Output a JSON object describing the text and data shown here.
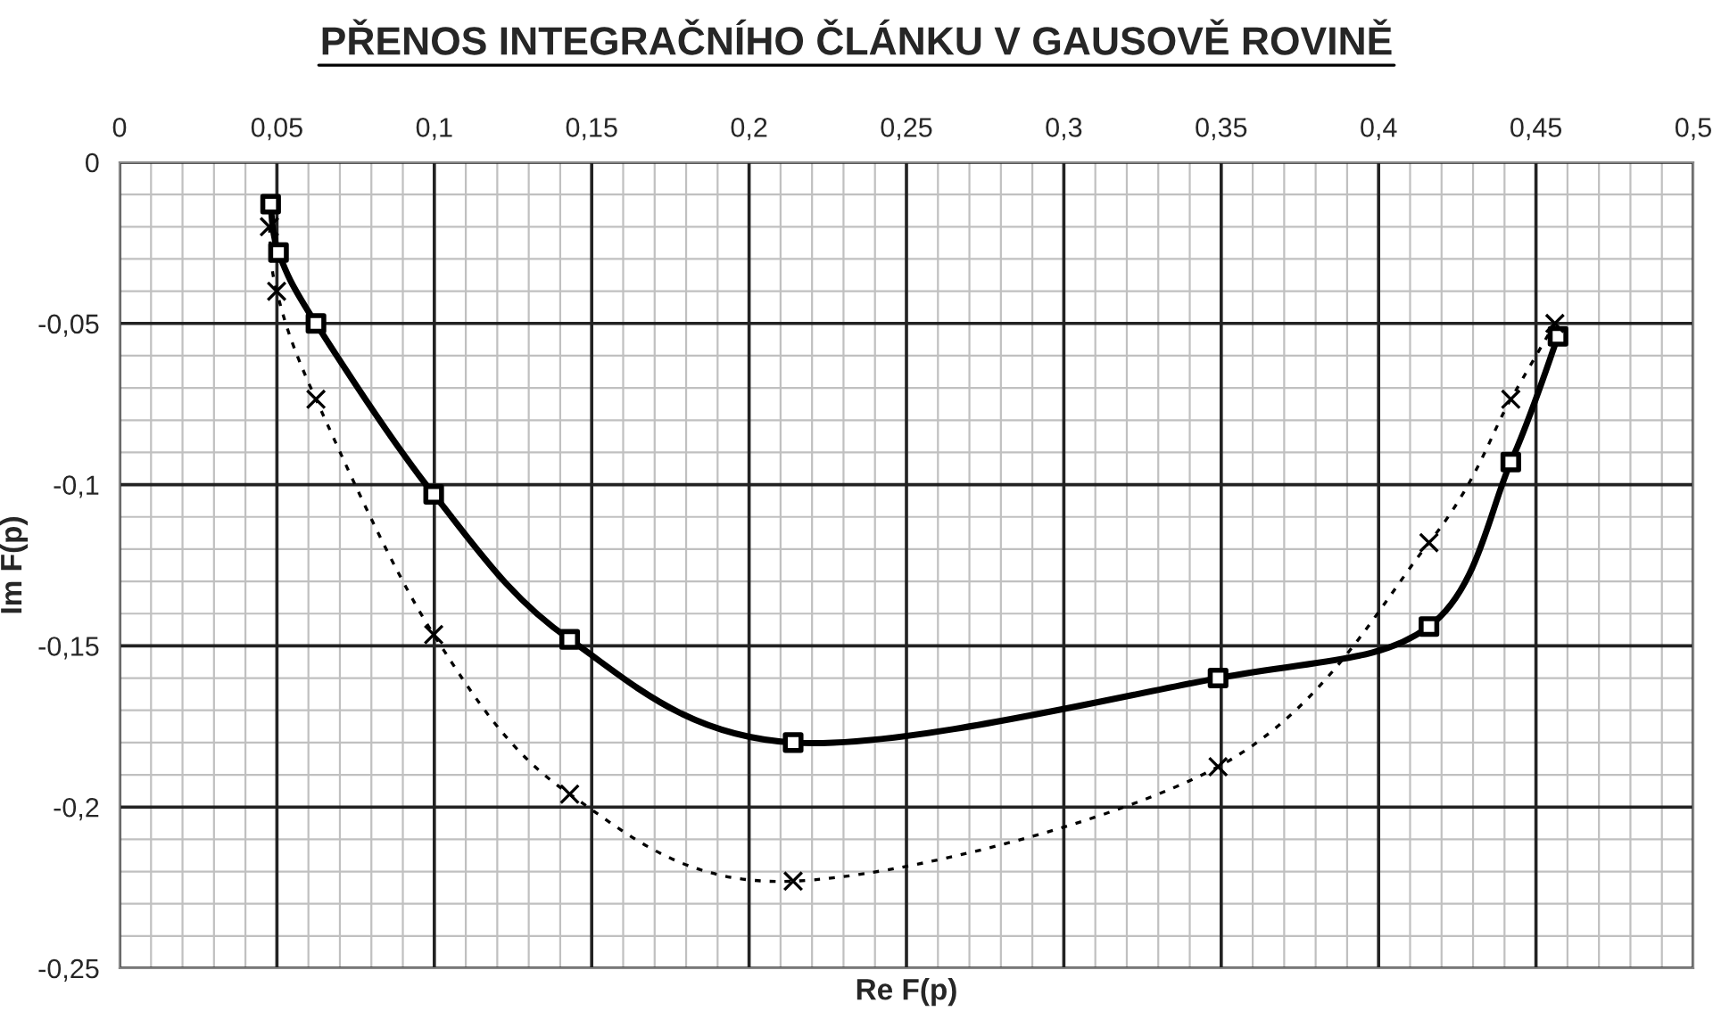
{
  "chart_data": {
    "type": "line",
    "title": "PŘENOS INTEGRAČNÍHO ČLÁNKU V GAUSOVĚ ROVINĚ",
    "xlabel": "Re F(p)",
    "ylabel": "Im F(p)",
    "xlim": [
      0,
      0.5
    ],
    "ylim": [
      -0.25,
      0
    ],
    "xticks": [
      0,
      {
        "value": 0.05,
        "label": "0,05"
      },
      {
        "value": 0.1,
        "label": "0,1"
      },
      {
        "value": 0.15,
        "label": "0,15"
      },
      {
        "value": 0.2,
        "label": "0,2"
      },
      {
        "value": 0.25,
        "label": "0,25"
      },
      {
        "value": 0.3,
        "label": "0,3"
      },
      {
        "value": 0.35,
        "label": "0,35"
      },
      {
        "value": 0.4,
        "label": "0,4"
      },
      {
        "value": 0.45,
        "label": "0,45"
      },
      {
        "value": 0.5,
        "label": "0,5"
      }
    ],
    "yticks": [
      0,
      {
        "value": -0.05,
        "label": "-0,05"
      },
      {
        "value": -0.1,
        "label": "-0,1"
      },
      {
        "value": -0.15,
        "label": "-0,15"
      },
      {
        "value": -0.2,
        "label": "-0,2"
      },
      {
        "value": -0.25,
        "label": "-0,25"
      }
    ],
    "grid": true,
    "legend": false,
    "series": [
      {
        "color": "#000000",
        "line_style": "solid",
        "marker": "square",
        "x": [
          0.048,
          0.0505,
          0.0624,
          0.0998,
          0.143,
          0.214,
          0.349,
          0.416,
          0.442,
          0.457
        ],
        "values": [
          -0.013,
          -0.028,
          -0.05,
          -0.103,
          -0.148,
          -0.18,
          -0.16,
          -0.144,
          -0.093,
          -0.054
        ]
      },
      {
        "color": "#000000",
        "line_style": "dotted",
        "marker": "cross",
        "x": [
          0.0476,
          0.0499,
          0.0624,
          0.0998,
          0.143,
          0.214,
          0.349,
          0.416,
          0.442,
          0.456
        ],
        "values": [
          -0.02,
          -0.04,
          -0.0735,
          -0.1465,
          -0.196,
          -0.223,
          -0.1875,
          -0.118,
          -0.0735,
          -0.05
        ]
      }
    ]
  }
}
